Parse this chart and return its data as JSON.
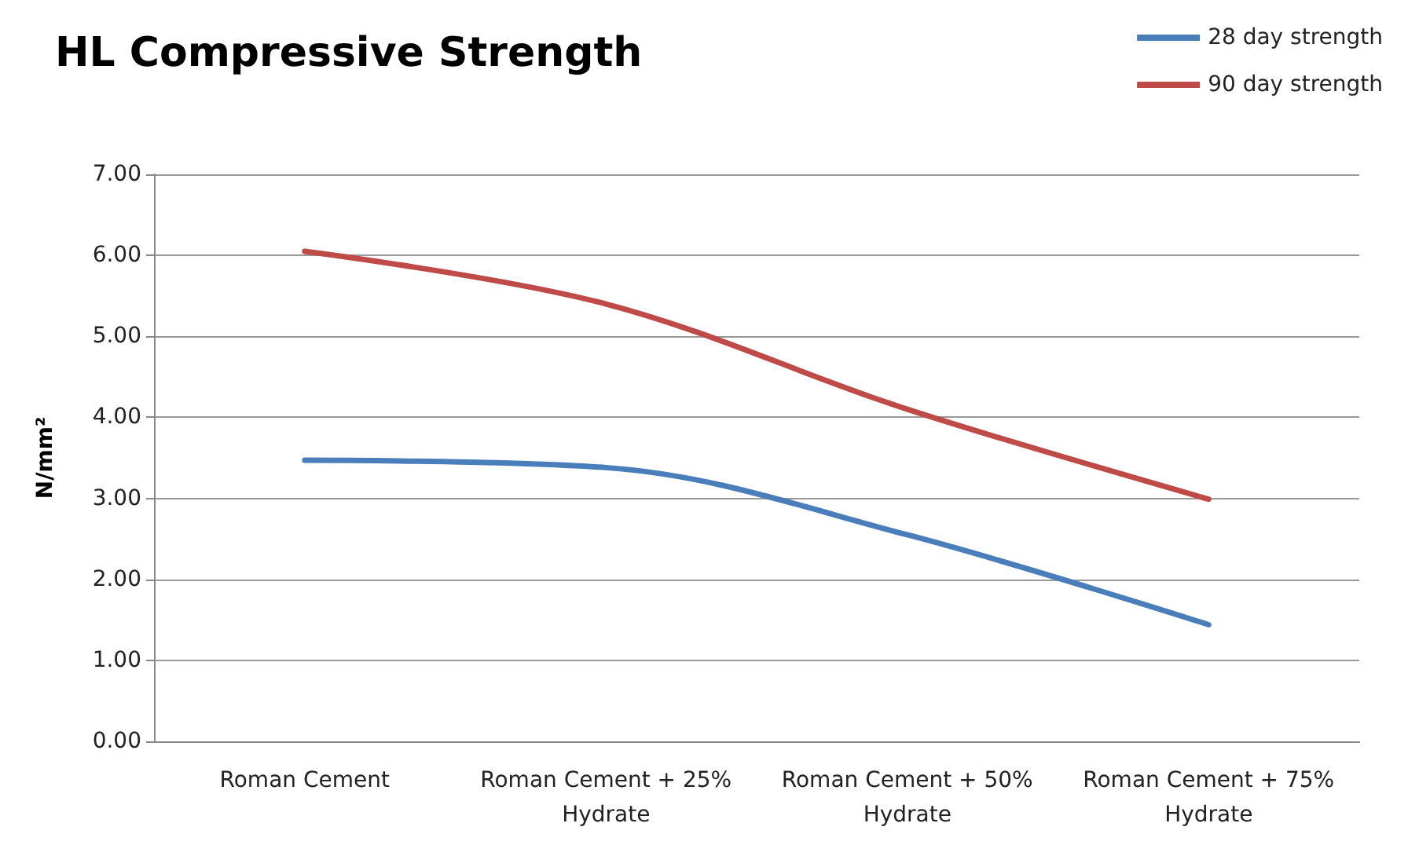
{
  "chart_data": {
    "type": "line",
    "title": "HL Compressive Strength",
    "ylabel": "N/mm²",
    "categories": [
      "Roman Cement",
      "Roman Cement + 25%\nHydrate",
      "Roman Cement + 50%\nHydrate",
      "Roman Cement + 75%\nHydrate"
    ],
    "series": [
      {
        "name": "28 day strength",
        "color": "#4a7ebb",
        "values": [
          3.47,
          3.38,
          2.55,
          1.44
        ]
      },
      {
        "name": "90 day strength",
        "color": "#be4b48",
        "values": [
          6.05,
          5.4,
          4.1,
          2.99
        ]
      }
    ],
    "ylim": [
      0,
      7
    ],
    "yticks": [
      {
        "value": 0,
        "label": "0.00"
      },
      {
        "value": 1,
        "label": "1.00"
      },
      {
        "value": 2,
        "label": "2.00"
      },
      {
        "value": 3,
        "label": "3.00"
      },
      {
        "value": 4,
        "label": "4.00"
      },
      {
        "value": 5,
        "label": "5.00"
      },
      {
        "value": 6,
        "label": "6.00"
      },
      {
        "value": 7,
        "label": "7.00"
      }
    ],
    "grid": "y",
    "legend": "top right",
    "marker": "none",
    "line_style": "solid"
  }
}
